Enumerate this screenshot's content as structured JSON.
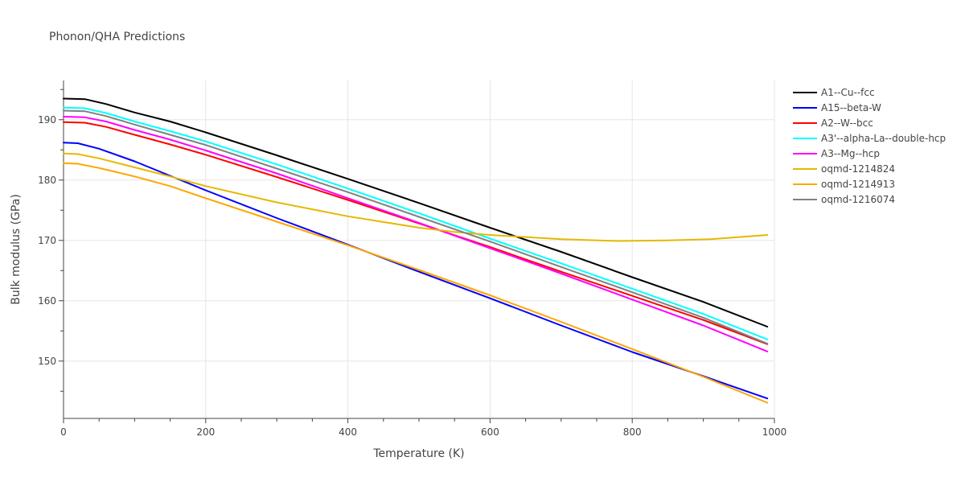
{
  "chart_data": {
    "type": "line",
    "title": "Phonon/QHA Predictions",
    "xlabel": "Temperature (K)",
    "ylabel": "Bulk modulus (GPa)",
    "xlim": [
      0,
      1000
    ],
    "ylim": [
      140.5,
      196.5
    ],
    "xticks": [
      0,
      200,
      400,
      600,
      800,
      1000
    ],
    "yticks": [
      150,
      160,
      170,
      180,
      190
    ],
    "grid": true,
    "legend_position": "right",
    "series": [
      {
        "name": "A1--Cu--fcc",
        "color": "#000000",
        "x": [
          0,
          30,
          60,
          100,
          150,
          200,
          300,
          400,
          500,
          600,
          700,
          800,
          900,
          990
        ],
        "y": [
          193.5,
          193.4,
          192.6,
          191.2,
          189.7,
          187.9,
          184.1,
          180.2,
          176.2,
          172.1,
          168.1,
          163.9,
          159.8,
          155.7
        ]
      },
      {
        "name": "A15--beta-W",
        "color": "#0000ff",
        "x": [
          0,
          20,
          50,
          100,
          150,
          200,
          300,
          400,
          500,
          600,
          700,
          800,
          900,
          990
        ],
        "y": [
          186.2,
          186.1,
          185.2,
          183.1,
          180.7,
          178.3,
          173.7,
          169.3,
          164.8,
          160.4,
          155.9,
          151.5,
          147.5,
          143.8
        ]
      },
      {
        "name": "A2--W--bcc",
        "color": "#ff0000",
        "x": [
          0,
          30,
          60,
          100,
          150,
          200,
          300,
          400,
          500,
          600,
          700,
          800,
          900,
          990
        ],
        "y": [
          189.6,
          189.5,
          188.8,
          187.5,
          185.9,
          184.2,
          180.5,
          176.7,
          172.8,
          168.9,
          164.8,
          160.8,
          156.8,
          152.8
        ]
      },
      {
        "name": "A3'--alpha-La--double-hcp",
        "color": "#00ffff",
        "x": [
          0,
          30,
          60,
          100,
          150,
          200,
          300,
          400,
          500,
          600,
          700,
          800,
          900,
          990
        ],
        "y": [
          192.0,
          191.9,
          191.1,
          189.7,
          188.1,
          186.4,
          182.6,
          178.6,
          174.5,
          170.3,
          166.2,
          162.0,
          157.8,
          153.6
        ]
      },
      {
        "name": "A3--Mg--hcp",
        "color": "#ff00ff",
        "x": [
          0,
          30,
          60,
          100,
          150,
          200,
          300,
          400,
          500,
          600,
          700,
          800,
          900,
          990
        ],
        "y": [
          190.5,
          190.4,
          189.7,
          188.3,
          186.7,
          184.9,
          181.1,
          177.0,
          172.9,
          168.7,
          164.5,
          160.2,
          155.9,
          151.6
        ]
      },
      {
        "name": "oqmd-1214824",
        "color": "#e6b800",
        "x": [
          0,
          20,
          50,
          100,
          150,
          200,
          300,
          400,
          500,
          550,
          600,
          700,
          780,
          850,
          910,
          990
        ],
        "y": [
          184.4,
          184.3,
          183.6,
          182.1,
          180.6,
          179.0,
          176.3,
          174.0,
          172.1,
          171.4,
          170.9,
          170.2,
          169.9,
          170.0,
          170.2,
          170.9
        ]
      },
      {
        "name": "oqmd-1214913",
        "color": "#ffa500",
        "x": [
          0,
          20,
          50,
          100,
          150,
          200,
          300,
          400,
          500,
          600,
          700,
          800,
          900,
          990
        ],
        "y": [
          182.8,
          182.7,
          182.0,
          180.6,
          179.0,
          177.0,
          173.1,
          169.2,
          165.1,
          160.9,
          156.5,
          152.0,
          147.4,
          143.1
        ]
      },
      {
        "name": "oqmd-1216074",
        "color": "#808080",
        "x": [
          0,
          30,
          60,
          100,
          150,
          200,
          300,
          400,
          500,
          600,
          700,
          800,
          900,
          990
        ],
        "y": [
          191.5,
          191.4,
          190.6,
          189.2,
          187.5,
          185.8,
          181.9,
          178.0,
          173.9,
          169.8,
          165.6,
          161.4,
          157.2,
          152.9
        ]
      }
    ]
  }
}
